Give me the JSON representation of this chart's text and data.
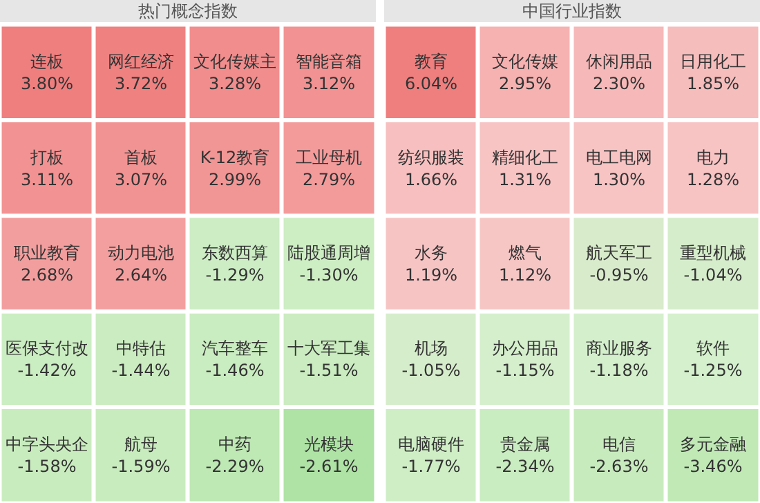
{
  "chart_data": [
    {
      "type": "other",
      "title": "热门概念指数",
      "categories": [
        "连板",
        "网红经济",
        "文化传媒主",
        "智能音箱",
        "打板",
        "首板",
        "K-12教育",
        "工业母机",
        "职业教育",
        "动力电池",
        "东数西算",
        "陆股通周增",
        "医保支付改",
        "中特估",
        "汽车整车",
        "十大军工集",
        "中字头央企",
        "航母",
        "中药",
        "光模块"
      ],
      "values": [
        3.8,
        3.72,
        3.28,
        3.12,
        3.11,
        3.07,
        2.99,
        2.79,
        2.68,
        2.64,
        -1.29,
        -1.3,
        -1.42,
        -1.44,
        -1.46,
        -1.51,
        -1.58,
        -1.59,
        -2.29,
        -2.61
      ],
      "value_labels": [
        "3.80%",
        "3.72%",
        "3.28%",
        "3.12%",
        "3.11%",
        "3.07%",
        "2.99%",
        "2.79%",
        "2.68%",
        "2.64%",
        "-1.29%",
        "-1.30%",
        "-1.42%",
        "-1.44%",
        "-1.46%",
        "-1.51%",
        "-1.58%",
        "-1.59%",
        "-2.29%",
        "-2.61%"
      ]
    },
    {
      "type": "other",
      "title": "中国行业指数",
      "categories": [
        "教育",
        "文化传媒",
        "休闲用品",
        "日用化工",
        "纺织服装",
        "精细化工",
        "电工电网",
        "电力",
        "水务",
        "燃气",
        "航天军工",
        "重型机械",
        "机场",
        "办公用品",
        "商业服务",
        "软件",
        "电脑硬件",
        "贵金属",
        "电信",
        "多元金融"
      ],
      "values": [
        6.04,
        2.95,
        2.3,
        1.85,
        1.66,
        1.31,
        1.3,
        1.28,
        1.19,
        1.12,
        -0.95,
        -1.04,
        -1.05,
        -1.15,
        -1.18,
        -1.25,
        -1.77,
        -2.34,
        -2.63,
        -3.46
      ],
      "value_labels": [
        "6.04%",
        "2.95%",
        "2.30%",
        "1.85%",
        "1.66%",
        "1.31%",
        "1.30%",
        "1.28%",
        "1.19%",
        "1.12%",
        "-0.95%",
        "-1.04%",
        "-1.05%",
        "-1.15%",
        "-1.18%",
        "-1.25%",
        "-1.77%",
        "-2.34%",
        "-2.63%",
        "-3.46%"
      ]
    }
  ]
}
